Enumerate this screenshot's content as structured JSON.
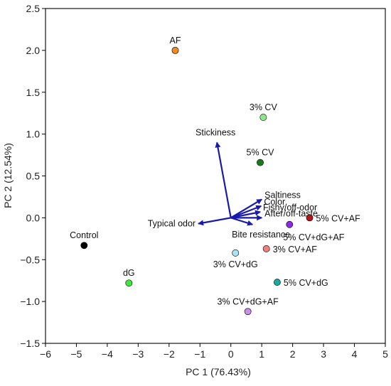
{
  "chart_data": {
    "type": "scatter",
    "xlabel": "PC 1 (76.43%)",
    "ylabel": "PC 2 (12.54%)",
    "xlim": [
      -6,
      5
    ],
    "ylim": [
      -1.5,
      2.5
    ],
    "xticks": [
      -6,
      -5,
      -4,
      -3,
      -2,
      -1,
      0,
      1,
      2,
      3,
      4,
      5
    ],
    "yticks": [
      -1.5,
      -1.0,
      -0.5,
      0.0,
      0.5,
      1.0,
      1.5,
      2.0,
      2.5
    ],
    "xtick_labels": [
      "−6",
      "−5",
      "−4",
      "−3",
      "−2",
      "−1",
      "0",
      "1",
      "2",
      "3",
      "4",
      "5"
    ],
    "ytick_labels": [
      "−1.5",
      "−1.0",
      "−0.5",
      "0.0",
      "0.5",
      "1.0",
      "1.5",
      "2.0",
      "2.5"
    ],
    "grid": false,
    "points": [
      {
        "label": "AF",
        "x": -1.8,
        "y": 2.0,
        "color": "#f08a1e",
        "label_pos": "top"
      },
      {
        "label": "3% CV",
        "x": 1.05,
        "y": 1.2,
        "color": "#8ee88a",
        "label_pos": "top"
      },
      {
        "label": "5% CV",
        "x": 0.95,
        "y": 0.66,
        "color": "#1a7a1a",
        "label_pos": "top"
      },
      {
        "label": "5% CV+AF",
        "x": 2.55,
        "y": 0.0,
        "color": "#b01818",
        "label_pos": "right"
      },
      {
        "label": "5% CV+dG+AF",
        "x": 1.9,
        "y": -0.08,
        "color": "#8a2be2",
        "label_pos": "below-right"
      },
      {
        "label": "3% CV+AF",
        "x": 1.15,
        "y": -0.37,
        "color": "#f08080",
        "label_pos": "right"
      },
      {
        "label": "3% CV+dG",
        "x": 0.15,
        "y": -0.42,
        "color": "#a8e4f2",
        "label_pos": "below"
      },
      {
        "label": "5% CV+dG",
        "x": 1.5,
        "y": -0.77,
        "color": "#1aa8a0",
        "label_pos": "right"
      },
      {
        "label": "3% CV+dG+AF",
        "x": 0.55,
        "y": -1.12,
        "color": "#c88ee8",
        "label_pos": "top"
      },
      {
        "label": "Control",
        "x": -4.75,
        "y": -0.33,
        "color": "#000000",
        "label_pos": "top"
      },
      {
        "label": "dG",
        "x": -3.3,
        "y": -0.78,
        "color": "#3ee83e",
        "label_pos": "top"
      }
    ],
    "vector_color": "#1a1aaa",
    "vectors": [
      {
        "label": "Stickiness",
        "x": -0.45,
        "y": 0.9,
        "label_pos": "top"
      },
      {
        "label": "Saltiness",
        "x": 1.0,
        "y": 0.22,
        "label_pos": "right"
      },
      {
        "label": "Color",
        "x": 0.98,
        "y": 0.14,
        "label_pos": "right"
      },
      {
        "label": "Fishy/off-odor",
        "x": 0.95,
        "y": 0.07,
        "label_pos": "right"
      },
      {
        "label": "After/off-taste",
        "x": 1.0,
        "y": 0.0,
        "label_pos": "right"
      },
      {
        "label": "Bite resistance",
        "x": 0.7,
        "y": -0.08,
        "label_pos": "below"
      },
      {
        "label": "Typical odor",
        "x": -1.05,
        "y": -0.07,
        "label_pos": "left"
      }
    ]
  }
}
